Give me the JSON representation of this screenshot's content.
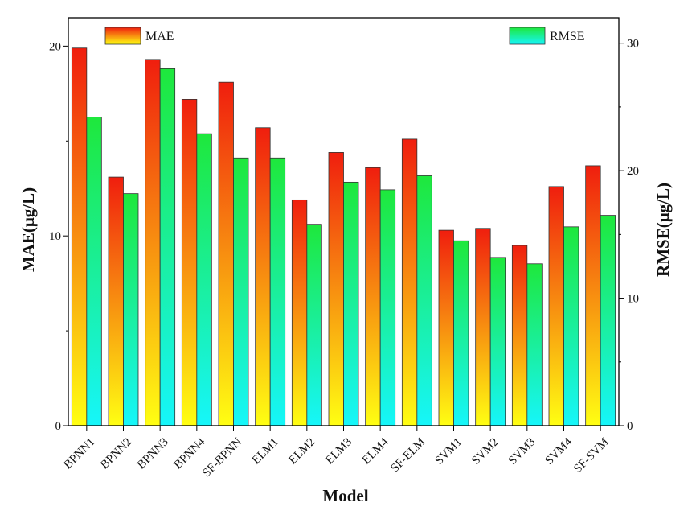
{
  "chart_data": {
    "type": "bar",
    "categories": [
      "BPNN1",
      "BPNN2",
      "BPNN3",
      "BPNN4",
      "SF-BPNN",
      "ELM1",
      "ELM2",
      "ELM3",
      "ELM4",
      "SF-ELM",
      "SVM1",
      "SVM2",
      "SVM3",
      "SVM4",
      "SF-SVM"
    ],
    "series": [
      {
        "name": "MAE",
        "axis": "left",
        "values": [
          19.9,
          13.1,
          19.3,
          17.2,
          18.1,
          15.7,
          11.9,
          14.4,
          13.6,
          15.1,
          10.3,
          10.4,
          9.5,
          12.6,
          13.7
        ]
      },
      {
        "name": "RMSE",
        "axis": "right",
        "values": [
          24.2,
          18.2,
          28.0,
          22.9,
          21.0,
          21.0,
          15.8,
          19.1,
          18.5,
          19.6,
          14.5,
          13.2,
          12.7,
          15.6,
          16.5
        ]
      }
    ],
    "xlabel": "Model",
    "ylabel_left": "MAE(μg/L)",
    "ylabel_right": "RMSE(μg/L)",
    "ylim_left": [
      0,
      21.5
    ],
    "ylim_right": [
      0,
      32
    ],
    "yticks_left": [
      "0",
      "10",
      "20"
    ],
    "yticks_right": [
      "0",
      "10",
      "20",
      "30"
    ],
    "legend": [
      "MAE",
      "RMSE"
    ],
    "gradients": {
      "MAE": [
        "#f01e0e",
        "#ffff12"
      ],
      "RMSE": [
        "#1ee83c",
        "#16f6fa"
      ]
    },
    "grid": false
  }
}
